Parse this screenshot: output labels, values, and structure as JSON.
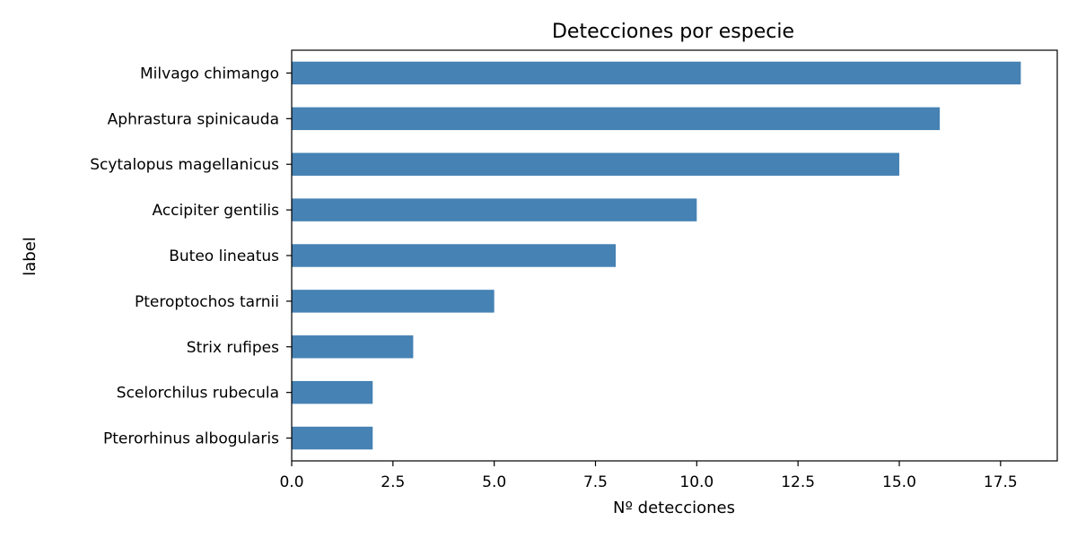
{
  "chart_data": {
    "type": "bar",
    "orientation": "horizontal",
    "title": "Detecciones por especie",
    "xlabel": "Nº detecciones",
    "ylabel": "label",
    "categories": [
      "Milvago chimango",
      "Aphrastura spinicauda",
      "Scytalopus magellanicus",
      "Accipiter gentilis",
      "Buteo lineatus",
      "Pteroptochos tarnii",
      "Strix rufipes",
      "Scelorchilus rubecula",
      "Pterorhinus albogularis"
    ],
    "values": [
      18,
      16,
      15,
      10,
      8,
      5,
      3,
      2,
      2
    ],
    "xlim": [
      0,
      18.9
    ],
    "xticks": [
      0,
      2.5,
      5,
      7.5,
      10,
      12.5,
      15,
      17.5
    ],
    "xtick_labels": [
      "0.0",
      "2.5",
      "5.0",
      "7.5",
      "10.0",
      "12.5",
      "15.0",
      "17.5"
    ],
    "bar_color": "#4682b4",
    "grid": false,
    "legend": "none"
  }
}
